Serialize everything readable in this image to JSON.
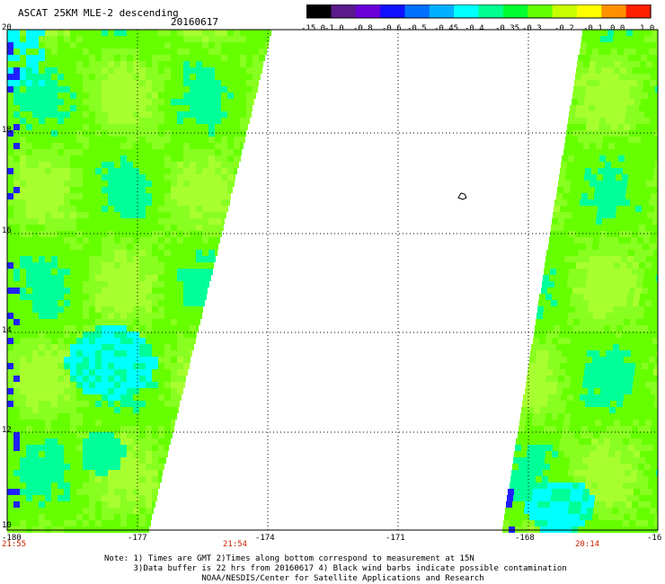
{
  "header": {
    "title": "ASCAT 25KM MLE-2 descending",
    "date": "20160617"
  },
  "colorbar": {
    "labels": [
      "-15.0",
      "-1.0",
      "-0.8",
      "-0.6",
      "-0.5",
      "-0.45",
      "-0.4",
      "-0.35",
      "-0.3",
      "-0.2",
      "-0.1",
      "0.0",
      "1.0"
    ],
    "colors": [
      "#000000",
      "#5a1a8a",
      "#6a00d8",
      "#1010ff",
      "#0070ff",
      "#00b0ff",
      "#00ffff",
      "#00ff90",
      "#00ff30",
      "#60ff00",
      "#c8ff00",
      "#ffff00",
      "#ff9000",
      "#ff2000"
    ]
  },
  "axes": {
    "lat_labels": [
      "20",
      "18",
      "16",
      "14",
      "12",
      "10"
    ],
    "lon_labels": [
      "-180",
      "-177",
      "-174",
      "-171",
      "-168",
      "-16"
    ]
  },
  "times": [
    "21:55",
    "21:54",
    "20:14"
  ],
  "time_color": "#cc2200",
  "notes": {
    "line1": "Note: 1) Times are GMT 2)Times along bottom correspond to measurement at 15N",
    "line2": "      3)Data buffer is 22 hrs from 20160617 4) Black wind barbs indicate possible contamination",
    "line3": "                    NOAA/NESDIS/Center for Satellite Applications and Research"
  },
  "swath_colors": {
    "green": "#66ff00",
    "light_green": "#88ff20",
    "yellow_green": "#a8ff30",
    "cyan": "#00ffff",
    "teal": "#00ff99",
    "blue": "#2020ff",
    "white": "#ffffff"
  }
}
